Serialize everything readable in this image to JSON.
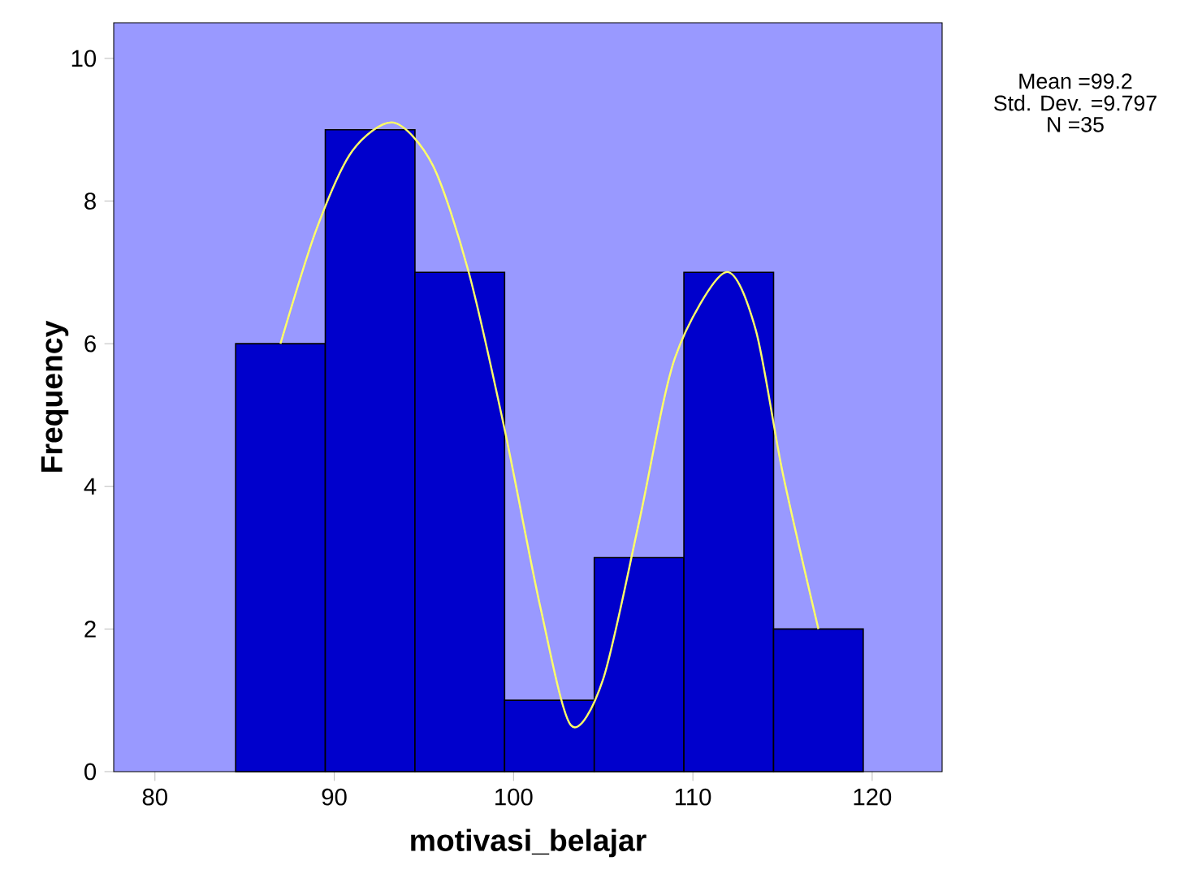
{
  "chart_data": {
    "type": "histogram",
    "xlabel": "motivasi_belajar",
    "ylabel": "Frequency",
    "bins": [
      84.5,
      89.5,
      94.5,
      99.5,
      104.5,
      109.5,
      114.5,
      119.5
    ],
    "values": [
      6,
      9,
      7,
      1,
      3,
      7,
      2
    ],
    "color": "#0000cc",
    "series": [
      {
        "type": "line",
        "color": "#ffff66",
        "x": [
          87,
          89,
          91,
          93.3,
          95.5,
          97.5,
          99.5,
          101.5,
          103.2,
          105,
          107,
          109,
          111.8,
          113.5,
          115,
          117
        ],
        "values": [
          6,
          7.6,
          8.7,
          9.1,
          8.5,
          7.0,
          4.8,
          2.3,
          0.65,
          1.3,
          3.5,
          5.8,
          7.0,
          6.2,
          4.2,
          2.0
        ]
      }
    ],
    "xlim": [
      77.7,
      123.9
    ],
    "ylim": [
      0,
      10.5
    ],
    "xticks": [
      80,
      90,
      100,
      110,
      120
    ],
    "yticks": [
      0,
      2,
      4,
      6,
      8,
      10
    ],
    "grid": false,
    "annotations": [
      "Mean =99.2",
      "Std. Dev. =9.797",
      "N =35"
    ]
  }
}
